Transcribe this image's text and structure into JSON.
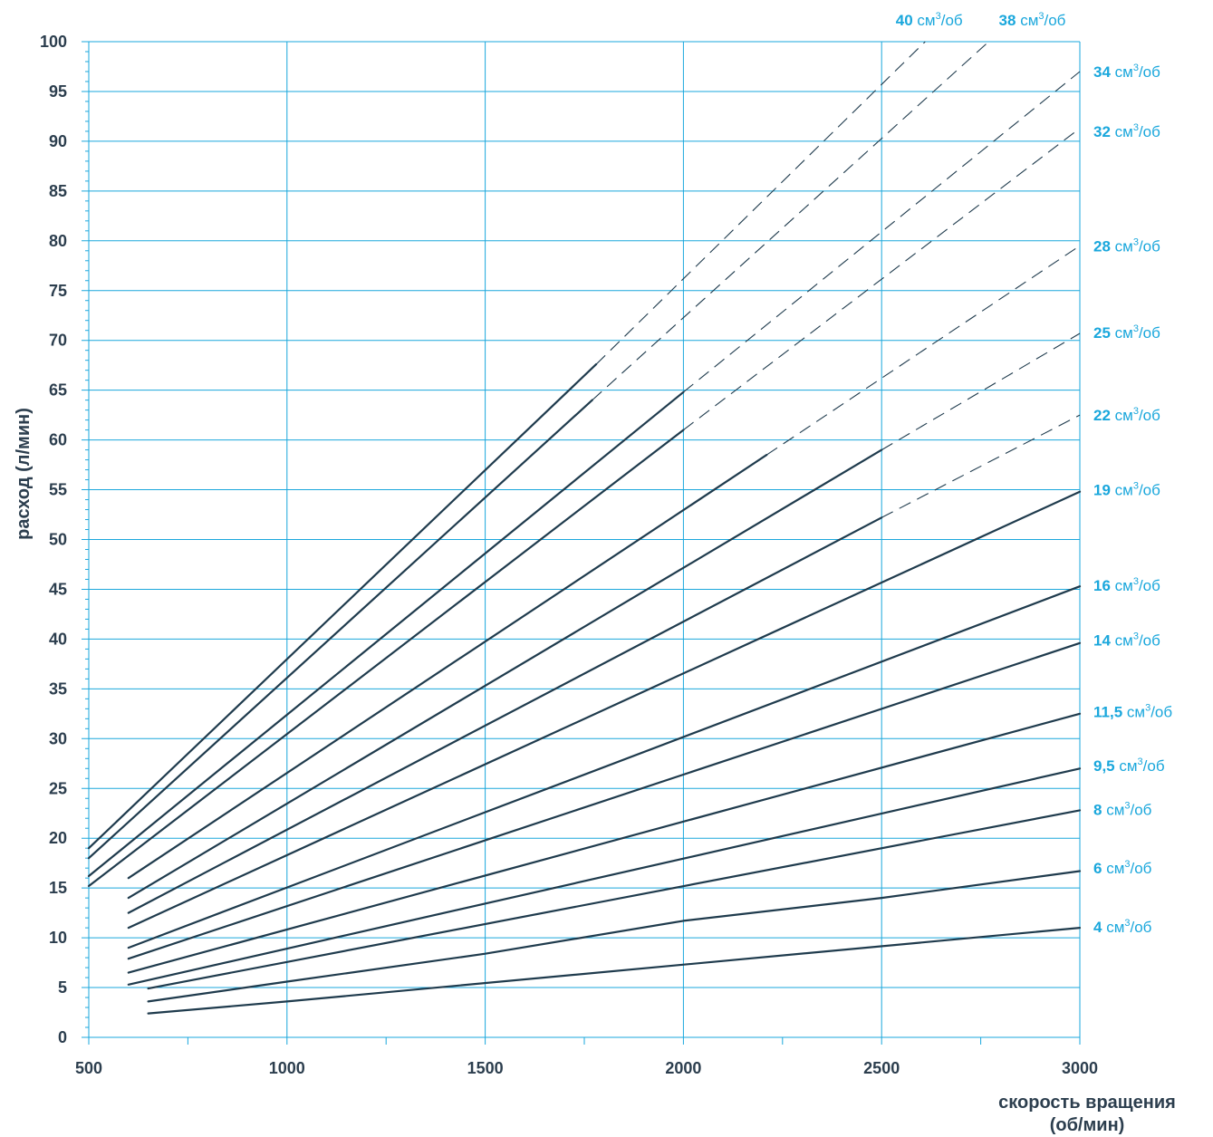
{
  "colors": {
    "grid": "#1aa7dc",
    "line": "#1f3b4d",
    "text": "#2c3e4e",
    "label": "#1aa7dc"
  },
  "chart_data": {
    "type": "line",
    "title": "",
    "xlabel": "скорость вращения (об/мин)",
    "xlabel_lines": [
      "скорость вращения",
      "(об/мин)"
    ],
    "ylabel": "расход (л/мин)",
    "xlim": [
      500,
      3000
    ],
    "ylim": [
      0,
      100
    ],
    "x_ticks": [
      500,
      1000,
      1500,
      2000,
      2500,
      3000
    ],
    "y_ticks": [
      0,
      5,
      10,
      15,
      20,
      25,
      30,
      35,
      40,
      45,
      50,
      55,
      60,
      65,
      70,
      75,
      80,
      85,
      90,
      95,
      100
    ],
    "grid": true,
    "label_unit": "см",
    "label_unit_sup": "3",
    "label_unit_tail": "/об",
    "series": [
      {
        "name": "4",
        "solid": [
          [
            650,
            2.4
          ],
          [
            1000,
            3.6
          ],
          [
            3000,
            11.0
          ]
        ],
        "dashed": []
      },
      {
        "name": "6",
        "solid": [
          [
            650,
            3.6
          ],
          [
            1000,
            5.6
          ],
          [
            1500,
            8.4
          ],
          [
            2000,
            11.7
          ],
          [
            2500,
            14.0
          ],
          [
            3000,
            16.7
          ]
        ],
        "dashed": []
      },
      {
        "name": "8",
        "solid": [
          [
            650,
            4.9
          ],
          [
            3000,
            22.8
          ]
        ],
        "dashed": []
      },
      {
        "name": "9,5",
        "solid": [
          [
            600,
            5.3
          ],
          [
            3000,
            27.0
          ]
        ],
        "dashed": []
      },
      {
        "name": "11,5",
        "solid": [
          [
            600,
            6.5
          ],
          [
            3000,
            32.5
          ]
        ],
        "dashed": []
      },
      {
        "name": "14",
        "solid": [
          [
            600,
            7.9
          ],
          [
            3000,
            39.6
          ]
        ],
        "dashed": []
      },
      {
        "name": "16",
        "solid": [
          [
            600,
            9.0
          ],
          [
            3000,
            45.3
          ]
        ],
        "dashed": []
      },
      {
        "name": "19",
        "solid": [
          [
            600,
            11.0
          ],
          [
            3000,
            54.8
          ]
        ],
        "dashed": []
      },
      {
        "name": "22",
        "solid": [
          [
            600,
            12.5
          ],
          [
            2500,
            52.2
          ]
        ],
        "dashed": [
          [
            2500,
            52.2
          ],
          [
            3000,
            62.5
          ]
        ]
      },
      {
        "name": "25",
        "solid": [
          [
            600,
            14.0
          ],
          [
            2500,
            59.0
          ]
        ],
        "dashed": [
          [
            2500,
            59.0
          ],
          [
            3000,
            70.7
          ]
        ]
      },
      {
        "name": "28",
        "solid": [
          [
            600,
            16.0
          ],
          [
            2210,
            58.5
          ]
        ],
        "dashed": [
          [
            2210,
            58.5
          ],
          [
            3000,
            79.5
          ]
        ]
      },
      {
        "name": "32",
        "solid": [
          [
            500,
            15.2
          ],
          [
            2000,
            61.0
          ]
        ],
        "dashed": [
          [
            2000,
            61.0
          ],
          [
            3000,
            91.3
          ]
        ]
      },
      {
        "name": "34",
        "solid": [
          [
            500,
            16.2
          ],
          [
            2000,
            64.8
          ]
        ],
        "dashed": [
          [
            2000,
            64.8
          ],
          [
            3000,
            97.0
          ]
        ]
      },
      {
        "name": "38",
        "solid": [
          [
            500,
            18.0
          ],
          [
            1770,
            64.0
          ]
        ],
        "dashed": [
          [
            1770,
            64.0
          ],
          [
            2770,
            100
          ]
        ]
      },
      {
        "name": "40",
        "solid": [
          [
            500,
            19.0
          ],
          [
            1780,
            67.6
          ]
        ],
        "dashed": [
          [
            1780,
            67.6
          ],
          [
            2610,
            100
          ]
        ]
      }
    ],
    "labels": [
      {
        "series": "40",
        "placement": "top",
        "x": 2620,
        "y": 100
      },
      {
        "series": "38",
        "placement": "top",
        "x": 2880,
        "y": 100
      },
      {
        "series": "34",
        "placement": "right",
        "y": 97.0
      },
      {
        "series": "32",
        "placement": "right",
        "y": 91.0
      },
      {
        "series": "28",
        "placement": "right",
        "y": 79.5
      },
      {
        "series": "25",
        "placement": "right",
        "y": 70.8
      },
      {
        "series": "22",
        "placement": "right",
        "y": 62.5
      },
      {
        "series": "19",
        "placement": "right",
        "y": 55.0
      },
      {
        "series": "16",
        "placement": "right",
        "y": 45.4
      },
      {
        "series": "14",
        "placement": "right",
        "y": 39.9
      },
      {
        "series": "11,5",
        "placement": "right",
        "y": 32.7
      },
      {
        "series": "9,5",
        "placement": "right",
        "y": 27.3
      },
      {
        "series": "8",
        "placement": "right",
        "y": 22.9
      },
      {
        "series": "6",
        "placement": "right",
        "y": 17.0
      },
      {
        "series": "4",
        "placement": "right",
        "y": 11.1
      }
    ]
  }
}
